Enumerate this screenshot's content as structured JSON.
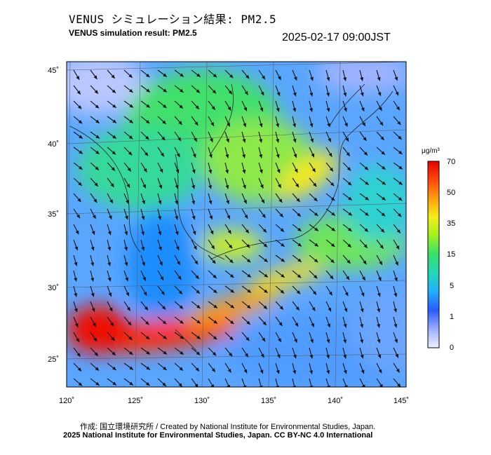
{
  "header": {
    "title_ja": "VENUS シミュレーション結果: PM2.5",
    "title_en": "VENUS simulation result: PM2.5",
    "timestamp": "2025-02-17 09:00JST"
  },
  "map": {
    "lat_labels": [
      "45˚",
      "40˚",
      "35˚",
      "30˚",
      "25˚"
    ],
    "lon_labels": [
      "120˚",
      "125˚",
      "130˚",
      "135˚",
      "140˚",
      "145˚"
    ],
    "colors": {
      "background_ocean": "#5aa6ff",
      "land_outline": "#222222"
    }
  },
  "colorbar": {
    "unit": "μg/m³",
    "ticks": [
      "70",
      "50",
      "35",
      "15",
      "5",
      "1",
      "0"
    ],
    "colors": [
      "#f0f0ff",
      "#9ab0ff",
      "#2a5bff",
      "#1fb0ff",
      "#23d6b8",
      "#34e26a",
      "#9ef021",
      "#f4ee1a",
      "#ff9f10",
      "#ff4a0a",
      "#e60000"
    ]
  },
  "footer": {
    "credit": "作成: 国立環境研究所 / Created by National Institute for Environmental Studies, Japan.",
    "license": "2025 National Institute for Environmental Studies, Japan. CC BY-NC 4.0 International"
  }
}
